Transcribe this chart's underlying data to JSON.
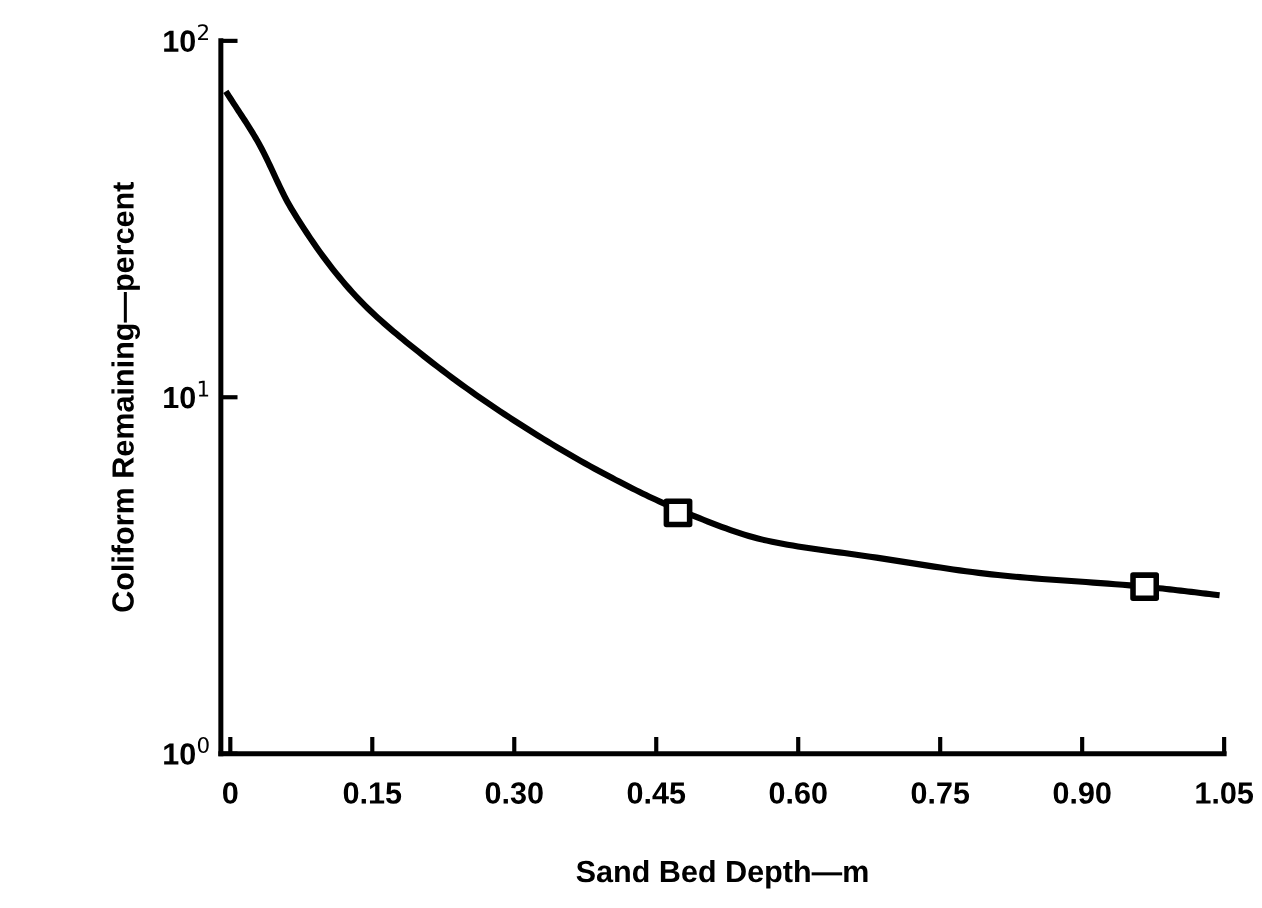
{
  "chart_data": {
    "type": "line",
    "xlabel": "Sand Bed Depth—m",
    "ylabel": "Coliform Remaining—percent",
    "log": "y",
    "grid": false,
    "xlim": [
      -0.01,
      1.05
    ],
    "xticks": [
      0,
      0.15,
      {
        "value": 0.3,
        "label": "0.30"
      },
      0.45,
      {
        "value": 0.6,
        "label": "0.60"
      },
      0.75,
      {
        "value": 0.9,
        "label": "0.90"
      },
      1.05
    ],
    "ylim": [
      1,
      100
    ],
    "yticks": [
      {
        "value": 1,
        "label": "10$^{0}$"
      },
      {
        "value": 10,
        "label": "10$^{1}$"
      },
      {
        "value": 100,
        "label": "10$^{2}$"
      }
    ],
    "series": [
      {
        "color": "#000000",
        "marker": "none",
        "line_style": "solid",
        "x": [
          -0.003,
          0.03,
          0.064,
          0.132,
          0.199,
          0.3,
          0.4,
          0.471,
          0.567,
          0.676,
          0.811,
          0.966,
          1.042
        ],
        "values": [
          71,
          51.6,
          34,
          19.3,
          13.4,
          8.6,
          6.0,
          4.87,
          3.96,
          3.57,
          3.17,
          2.94,
          2.79
        ]
      },
      {
        "type": "scatter",
        "color": "#000000",
        "marker": "square",
        "x": [
          0.473,
          0.966
        ],
        "values": [
          4.74,
          2.94
        ]
      }
    ]
  }
}
